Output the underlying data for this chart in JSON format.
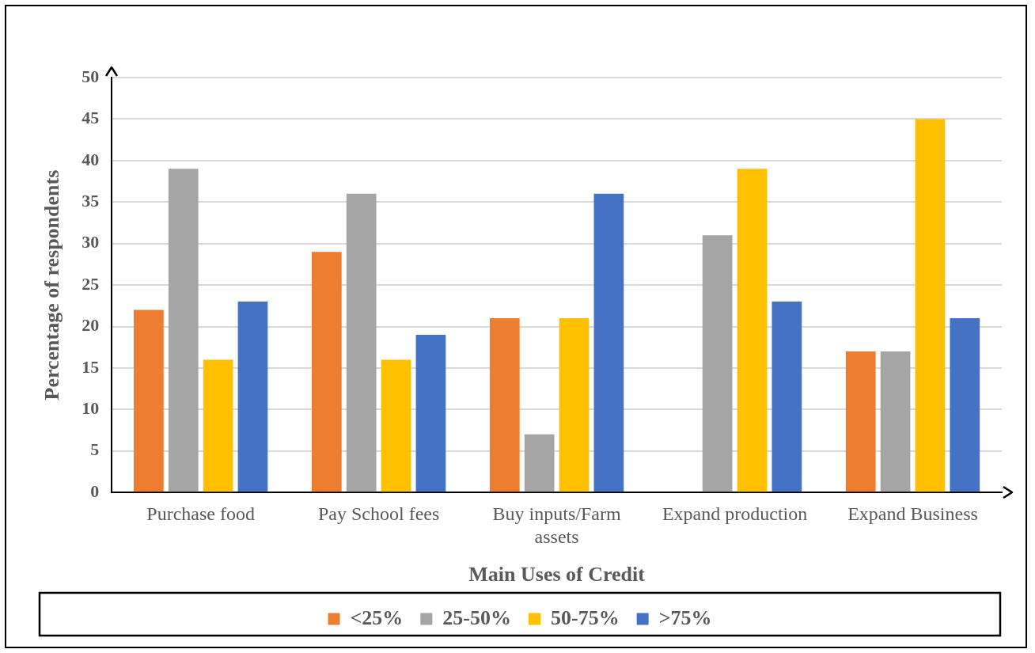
{
  "chart_data": {
    "type": "bar",
    "xlabel": "Main Uses of Credit",
    "ylabel": "Percentage of respondents",
    "categories": [
      "Purchase food",
      "Pay School fees",
      "Buy inputs/Farm assets",
      "Expand production",
      "Expand Business"
    ],
    "series": [
      {
        "name": "<25%",
        "color": "#ed7d31",
        "values": [
          22,
          29,
          21,
          0,
          17
        ]
      },
      {
        "name": "25-50%",
        "color": "#a5a5a5",
        "values": [
          39,
          36,
          7,
          31,
          17
        ]
      },
      {
        "name": "50-75%",
        "color": "#ffc000",
        "values": [
          16,
          16,
          21,
          39,
          45
        ]
      },
      {
        "name": ">75%",
        "color": "#4472c4",
        "values": [
          23,
          19,
          36,
          23,
          21
        ]
      }
    ],
    "ylim": [
      0,
      50
    ],
    "yticks": [
      0,
      5,
      10,
      15,
      20,
      25,
      30,
      35,
      40,
      45,
      50
    ],
    "grid": "y",
    "legend": "bottom"
  }
}
